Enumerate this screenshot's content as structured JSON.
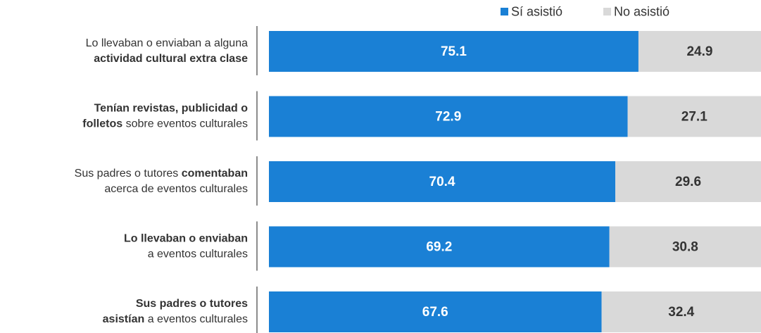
{
  "chart_data": {
    "type": "stacked-bar-100",
    "categories": [
      [
        [
          {
            "text": "Lo llevaban o enviaban a alguna",
            "bold": false
          }
        ],
        [
          {
            "text": "actividad cultural extra clase",
            "bold": true
          }
        ]
      ],
      [
        [
          {
            "text": "Tenían revistas, publicidad o",
            "bold": true
          }
        ],
        [
          {
            "text": "folletos",
            "bold": true
          },
          {
            "text": " sobre eventos culturales",
            "bold": false
          }
        ]
      ],
      [
        [
          {
            "text": "Sus padres o tutores ",
            "bold": false
          },
          {
            "text": "comentaban",
            "bold": true
          }
        ],
        [
          {
            "text": "acerca de eventos culturales",
            "bold": false
          }
        ]
      ],
      [
        [
          {
            "text": "Lo llevaban o enviaban",
            "bold": true
          }
        ],
        [
          {
            "text": "a eventos culturales",
            "bold": false
          }
        ]
      ],
      [
        [
          {
            "text": "Sus padres o tutores",
            "bold": true
          }
        ],
        [
          {
            "text": "asistían",
            "bold": true
          },
          {
            "text": " a eventos culturales",
            "bold": false
          }
        ]
      ]
    ],
    "series": [
      {
        "name": "Sí asistió",
        "color": "#1a80d5",
        "values": [
          75.1,
          72.9,
          70.4,
          69.2,
          67.6
        ]
      },
      {
        "name": "No asistió",
        "color": "#d9d9d9",
        "values": [
          24.9,
          27.1,
          29.6,
          30.8,
          32.4
        ]
      }
    ],
    "xlim": [
      0,
      100
    ],
    "legend": "top-right"
  }
}
